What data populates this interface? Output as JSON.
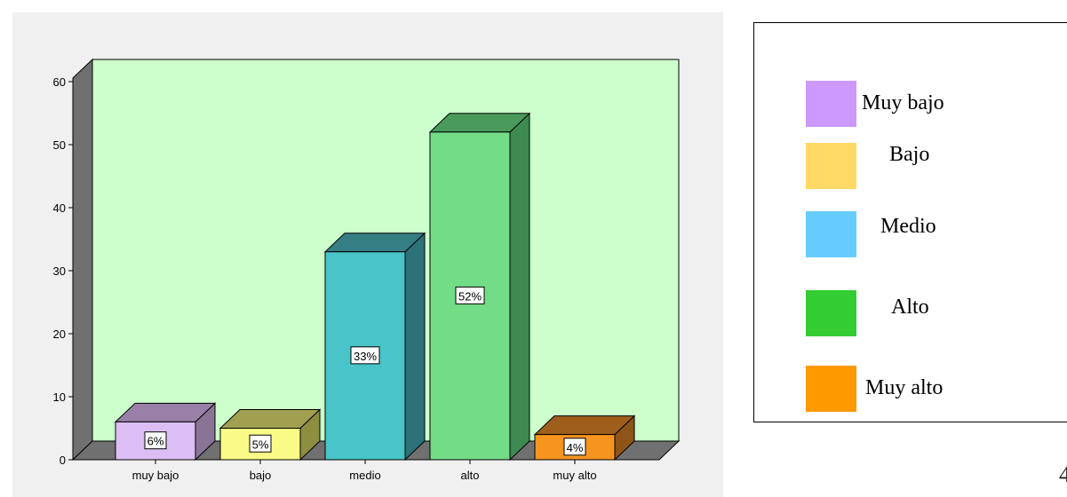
{
  "chart_data": {
    "type": "bar",
    "categories": [
      "muy bajo",
      "bajo",
      "medio",
      "alto",
      "muy alto"
    ],
    "values": [
      6,
      5,
      33,
      52,
      4
    ],
    "data_labels": [
      "6%",
      "5%",
      "33%",
      "52%",
      "4%"
    ],
    "ylim": [
      0,
      60
    ],
    "yticks": [
      0,
      10,
      20,
      30,
      40,
      50,
      60
    ],
    "title": "",
    "xlabel": "",
    "ylabel": "",
    "grid": false,
    "style": "3d",
    "bar_colors": [
      "#dcbef5",
      "#fafa86",
      "#49c4c8",
      "#72dc86",
      "#f5951f"
    ],
    "bar_side_colors": [
      "#8a7496",
      "#8e8e40",
      "#2c7278",
      "#3e8a50",
      "#8e5418"
    ],
    "bar_top_colors": [
      "#9a80a8",
      "#a0a050",
      "#357e84",
      "#4a9a5c",
      "#9e5e1c"
    ],
    "plot_background": "#ccffcc",
    "wall_side_color": "#707070"
  },
  "legend": {
    "items": [
      {
        "label": "Muy bajo",
        "color": "#cc99ff"
      },
      {
        "label": "Bajo",
        "color": "#ffd966"
      },
      {
        "label": "Medio",
        "color": "#66ccff"
      },
      {
        "label": "Alto",
        "color": "#33cc33"
      },
      {
        "label": "Muy alto",
        "color": "#ff9900"
      }
    ]
  },
  "page_number": "4"
}
